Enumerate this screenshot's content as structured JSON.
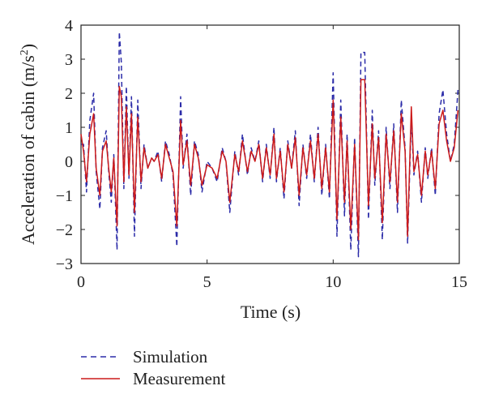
{
  "chart_data": {
    "type": "line",
    "xlabel": "Time (s)",
    "ylabel_main": "Acceleration of cabin (m/s",
    "ylabel_sup": "2",
    "ylabel_close": ")",
    "xlim": [
      0,
      15
    ],
    "ylim": [
      -3,
      4
    ],
    "xticks": [
      0,
      5,
      10,
      15
    ],
    "yticks": [
      -3,
      -2,
      -1,
      0,
      1,
      2,
      3,
      4
    ],
    "grid": false,
    "legend_position": "bottom-left, below plot",
    "series": [
      {
        "name": "Simulation",
        "color": "#2b2ba8",
        "style": "dashed",
        "x": [
          0,
          0.1,
          0.22,
          0.35,
          0.5,
          0.6,
          0.75,
          0.85,
          1.0,
          1.1,
          1.2,
          1.3,
          1.43,
          1.52,
          1.6,
          1.7,
          1.8,
          1.9,
          2.0,
          2.12,
          2.25,
          2.38,
          2.5,
          2.65,
          2.8,
          2.9,
          3.05,
          3.2,
          3.35,
          3.5,
          3.65,
          3.8,
          3.95,
          4.05,
          4.2,
          4.35,
          4.5,
          4.65,
          4.8,
          5.0,
          5.2,
          5.4,
          5.6,
          5.75,
          5.9,
          6.1,
          6.25,
          6.4,
          6.6,
          6.75,
          6.9,
          7.05,
          7.2,
          7.35,
          7.5,
          7.65,
          7.75,
          7.9,
          8.05,
          8.2,
          8.35,
          8.5,
          8.65,
          8.8,
          8.95,
          9.1,
          9.25,
          9.4,
          9.55,
          9.7,
          9.85,
          10.0,
          10.15,
          10.3,
          10.45,
          10.55,
          10.7,
          10.85,
          11.0,
          11.1,
          11.25,
          11.4,
          11.55,
          11.65,
          11.8,
          11.95,
          12.1,
          12.25,
          12.4,
          12.55,
          12.7,
          12.85,
          12.95,
          13.1,
          13.2,
          13.35,
          13.5,
          13.65,
          13.75,
          13.9,
          14.05,
          14.2,
          14.35,
          14.5,
          14.65,
          14.8,
          14.95
        ],
        "y": [
          0.5,
          0.5,
          -0.9,
          1.2,
          2.0,
          -0.3,
          -1.4,
          0.4,
          0.9,
          -0.3,
          -1.2,
          0.2,
          -2.6,
          3.8,
          2.9,
          -0.8,
          2.2,
          -0.5,
          1.9,
          -2.2,
          1.8,
          -0.8,
          0.5,
          -0.2,
          0.1,
          0.0,
          0.3,
          -0.6,
          0.6,
          0.2,
          -0.4,
          -2.5,
          1.9,
          -0.2,
          0.8,
          -1.0,
          0.6,
          0.2,
          -0.9,
          0.0,
          -0.2,
          -0.6,
          0.4,
          0.0,
          -1.5,
          0.3,
          -0.4,
          0.8,
          -0.4,
          0.4,
          0.0,
          0.6,
          -0.6,
          0.5,
          -0.5,
          1.0,
          -0.6,
          0.4,
          -1.1,
          0.6,
          -0.2,
          0.9,
          -1.3,
          0.5,
          -0.5,
          0.8,
          -0.6,
          1.0,
          -1.0,
          0.5,
          -1.1,
          2.6,
          -2.2,
          1.8,
          -1.6,
          0.8,
          -2.6,
          0.7,
          -2.8,
          3.2,
          3.2,
          -1.7,
          1.5,
          -0.7,
          0.9,
          -2.3,
          1.0,
          -0.8,
          1.1,
          -1.5,
          1.8,
          0.4,
          -2.4,
          1.3,
          -0.4,
          0.3,
          -1.2,
          0.4,
          -0.5,
          0.4,
          -1.0,
          1.4,
          2.1,
          0.8,
          0.0,
          0.5,
          2.1
        ]
      },
      {
        "name": "Measurement",
        "color": "#cc1a1a",
        "style": "solid",
        "x": [
          0,
          0.1,
          0.22,
          0.35,
          0.5,
          0.6,
          0.75,
          0.85,
          1.0,
          1.1,
          1.2,
          1.3,
          1.43,
          1.52,
          1.6,
          1.7,
          1.8,
          1.9,
          2.0,
          2.12,
          2.25,
          2.38,
          2.5,
          2.65,
          2.8,
          2.9,
          3.05,
          3.2,
          3.35,
          3.5,
          3.65,
          3.8,
          3.95,
          4.05,
          4.2,
          4.35,
          4.5,
          4.65,
          4.8,
          5.0,
          5.2,
          5.4,
          5.6,
          5.75,
          5.9,
          6.1,
          6.25,
          6.4,
          6.6,
          6.75,
          6.9,
          7.05,
          7.2,
          7.35,
          7.5,
          7.65,
          7.75,
          7.9,
          8.05,
          8.2,
          8.35,
          8.5,
          8.65,
          8.8,
          8.95,
          9.1,
          9.25,
          9.4,
          9.55,
          9.7,
          9.85,
          10.0,
          10.15,
          10.3,
          10.45,
          10.55,
          10.7,
          10.85,
          11.0,
          11.1,
          11.25,
          11.4,
          11.55,
          11.65,
          11.8,
          11.95,
          12.1,
          12.25,
          12.4,
          12.55,
          12.7,
          12.85,
          12.95,
          13.1,
          13.2,
          13.35,
          13.5,
          13.65,
          13.75,
          13.9,
          14.05,
          14.2,
          14.35,
          14.5,
          14.65,
          14.8,
          14.95
        ],
        "y": [
          0.8,
          0.3,
          -0.6,
          0.8,
          1.4,
          -0.2,
          -1.0,
          0.3,
          0.6,
          -0.2,
          -0.9,
          0.1,
          -1.9,
          2.2,
          1.9,
          -0.6,
          1.6,
          -0.4,
          1.4,
          -1.5,
          1.3,
          -0.6,
          0.4,
          -0.2,
          0.1,
          0.0,
          0.2,
          -0.5,
          0.5,
          0.1,
          -0.3,
          -1.9,
          1.2,
          -0.1,
          0.6,
          -0.7,
          0.5,
          0.1,
          -0.7,
          -0.1,
          -0.2,
          -0.5,
          0.3,
          0.0,
          -1.2,
          0.2,
          -0.3,
          0.6,
          -0.3,
          0.3,
          0.0,
          0.5,
          -0.5,
          0.4,
          -0.4,
          0.8,
          -0.5,
          0.3,
          -0.9,
          0.5,
          -0.2,
          0.7,
          -1.0,
          0.4,
          -0.4,
          0.6,
          -0.5,
          0.8,
          -0.8,
          0.4,
          -0.9,
          1.8,
          -1.7,
          1.3,
          -1.2,
          0.6,
          -2.0,
          0.5,
          -2.3,
          2.4,
          2.4,
          -1.3,
          1.1,
          -0.5,
          0.7,
          -1.8,
          0.8,
          -0.6,
          0.9,
          -1.2,
          1.4,
          0.3,
          -2.2,
          1.6,
          -0.3,
          0.2,
          -1.0,
          0.3,
          -0.4,
          0.3,
          -0.8,
          1.1,
          1.5,
          0.6,
          0.0,
          0.4,
          1.5
        ]
      }
    ]
  }
}
